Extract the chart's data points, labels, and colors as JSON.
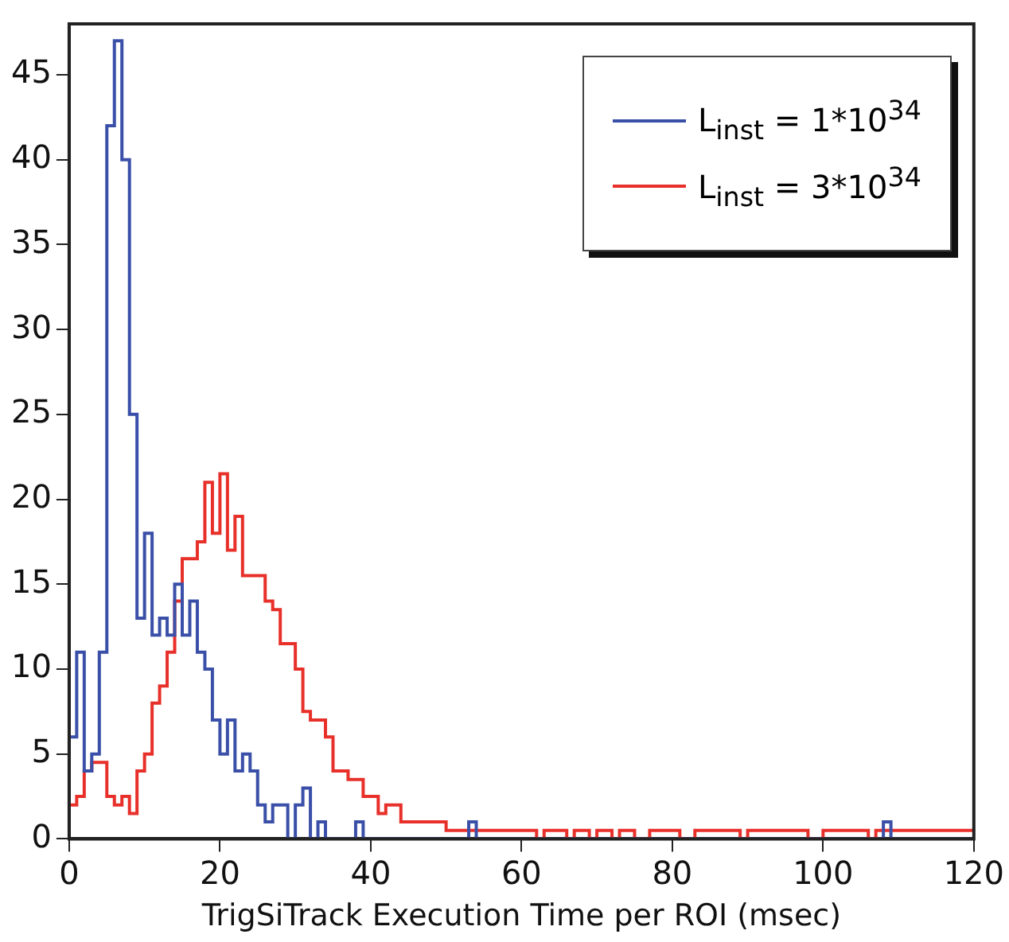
{
  "chart_data": {
    "type": "histogram",
    "xlabel": "TrigSiTrack Execution Time per ROI (msec)",
    "bins": [
      0,
      1,
      2,
      3,
      4,
      5,
      6,
      7,
      8,
      9,
      10,
      11,
      12,
      13,
      14,
      15,
      16,
      17,
      18,
      19,
      20,
      21,
      22,
      23,
      24,
      25,
      26,
      27,
      28,
      29,
      30,
      31,
      32,
      33,
      34,
      35,
      36,
      37,
      38,
      39,
      40,
      41,
      42,
      43,
      44,
      45,
      46,
      47,
      48,
      49,
      50,
      51,
      52,
      53,
      54,
      55,
      56,
      57,
      58,
      59,
      60,
      61,
      62,
      63,
      64,
      65,
      66,
      67,
      68,
      69,
      70,
      71,
      72,
      73,
      74,
      75,
      76,
      77,
      78,
      79,
      80,
      81,
      82,
      83,
      84,
      85,
      86,
      87,
      88,
      89,
      90,
      91,
      92,
      93,
      94,
      95,
      96,
      97,
      98,
      99,
      100,
      101,
      102,
      103,
      104,
      105,
      106,
      107,
      108,
      109,
      110,
      111,
      112,
      113,
      114,
      115,
      116,
      117,
      118,
      119,
      120
    ],
    "series": [
      {
        "name": "L$_{inst}$ = 1*10$^{34}$",
        "color": "#3a4fa8",
        "values": [
          6,
          11,
          4,
          5,
          11,
          42,
          47,
          40,
          25,
          13,
          18,
          12,
          13,
          12,
          15,
          12,
          14,
          11,
          10,
          7,
          5,
          7,
          4,
          5,
          4,
          2,
          1,
          2,
          2,
          0,
          2,
          3,
          0,
          1,
          0,
          0,
          0,
          0,
          1,
          0,
          0,
          0,
          0,
          0,
          0,
          0,
          0,
          0,
          0,
          0,
          0,
          0,
          0,
          1,
          0,
          0,
          0,
          0,
          0,
          0,
          0,
          0,
          0,
          0,
          0,
          0,
          0,
          0,
          0,
          0,
          0,
          0,
          0,
          0,
          0,
          0,
          0,
          0,
          0,
          0,
          0,
          0,
          0,
          0,
          0,
          0,
          0,
          0,
          0,
          0,
          0,
          0,
          0,
          0,
          0,
          0,
          0,
          0,
          0,
          0,
          0,
          0,
          0,
          0,
          0,
          0,
          0,
          0,
          1,
          0,
          0,
          0,
          0,
          0,
          0,
          0,
          0,
          0,
          0,
          0
        ]
      },
      {
        "name": "L$_{inst}$ = 3*10$^{34}$",
        "color": "#e8302a",
        "values": [
          2,
          2.5,
          4,
          4.5,
          4.5,
          2.5,
          2,
          2.5,
          1.5,
          4,
          5,
          8,
          9,
          11,
          14,
          16.5,
          16.5,
          17.5,
          21,
          18,
          21.5,
          17,
          19,
          15.5,
          15.5,
          15.5,
          14,
          13.5,
          11.5,
          11.5,
          10,
          7.5,
          7,
          7,
          6,
          4,
          4,
          3.5,
          3.5,
          2.5,
          2.5,
          1.5,
          2,
          2,
          1,
          1,
          1,
          1,
          1,
          1,
          0.5,
          0.5,
          0.5,
          0.5,
          0.5,
          0.5,
          0.5,
          0.5,
          0.5,
          0.5,
          0.5,
          0.5,
          0,
          0.5,
          0.5,
          0.5,
          0,
          0.5,
          0.5,
          0,
          0.5,
          0.5,
          0,
          0.5,
          0.5,
          0,
          0,
          0.5,
          0.5,
          0.5,
          0.5,
          0,
          0,
          0.5,
          0.5,
          0.5,
          0.5,
          0.5,
          0.5,
          0,
          0.5,
          0.5,
          0.5,
          0.5,
          0.5,
          0.5,
          0.5,
          0.5,
          0,
          0,
          0.5,
          0.5,
          0.5,
          0.5,
          0.5,
          0.5,
          0,
          0.5,
          0.5,
          0.5,
          0.5,
          0.5,
          0.5,
          0.5,
          0.5,
          0.5,
          0.5,
          0.5,
          0.5,
          0.5
        ]
      }
    ],
    "xlim": [
      0,
      120
    ],
    "xticks": [
      0,
      20,
      40,
      60,
      80,
      100,
      120
    ],
    "ylim": [
      0,
      48
    ],
    "yticks": [
      0,
      5,
      10,
      15,
      20,
      25,
      30,
      35,
      40,
      45
    ],
    "grid": false,
    "legend": "top right"
  }
}
